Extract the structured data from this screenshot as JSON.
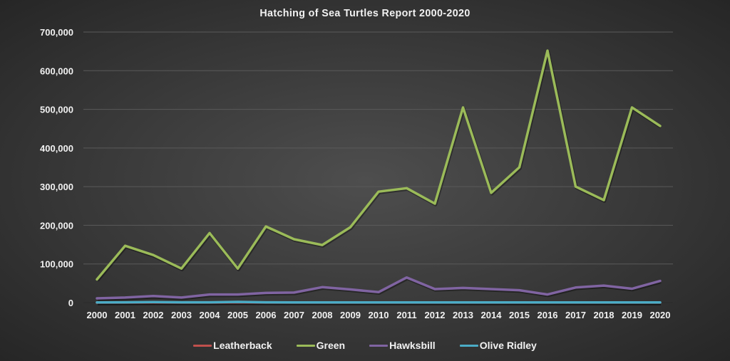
{
  "chart_data": {
    "type": "line",
    "title": "Hatching of Sea Turtles Report 2000-2020",
    "xlabel": "",
    "ylabel": "",
    "ylim": [
      0,
      700000
    ],
    "yticks": [
      0,
      100000,
      200000,
      300000,
      400000,
      500000,
      600000,
      700000
    ],
    "ytick_labels": [
      "0",
      "100,000",
      "200,000",
      "300,000",
      "400,000",
      "500,000",
      "600,000",
      "700,000"
    ],
    "grid": true,
    "legend_position": "bottom",
    "categories": [
      "2000",
      "2001",
      "2002",
      "2003",
      "2004",
      "2005",
      "2006",
      "2007",
      "2008",
      "2009",
      "2010",
      "2011",
      "2012",
      "2013",
      "2014",
      "2015",
      "2016",
      "2017",
      "2018",
      "2019",
      "2020"
    ],
    "series": [
      {
        "name": "Leatherback",
        "color": "#c0504d",
        "values": [
          0,
          0,
          0,
          0,
          0,
          0,
          0,
          0,
          0,
          0,
          0,
          0,
          0,
          0,
          0,
          0,
          0,
          0,
          0,
          0,
          0
        ]
      },
      {
        "name": "Green",
        "color": "#9bbb59",
        "values": [
          60000,
          147000,
          123000,
          88000,
          180000,
          88000,
          197000,
          164000,
          149000,
          195000,
          287000,
          296000,
          256000,
          505000,
          284000,
          350000,
          652000,
          300000,
          265000,
          505000,
          457000
        ]
      },
      {
        "name": "Hawksbill",
        "color": "#8064a2",
        "values": [
          11000,
          13000,
          17000,
          13000,
          21000,
          21000,
          25000,
          26000,
          40000,
          34000,
          27000,
          65000,
          35000,
          38000,
          35000,
          32000,
          21000,
          39000,
          44000,
          36000,
          56000
        ]
      },
      {
        "name": "Olive Ridley",
        "color": "#4bacc6",
        "values": [
          500,
          800,
          1500,
          800,
          800,
          1800,
          800,
          600,
          500,
          500,
          500,
          500,
          500,
          500,
          500,
          500,
          500,
          500,
          500,
          500,
          500
        ]
      }
    ]
  }
}
